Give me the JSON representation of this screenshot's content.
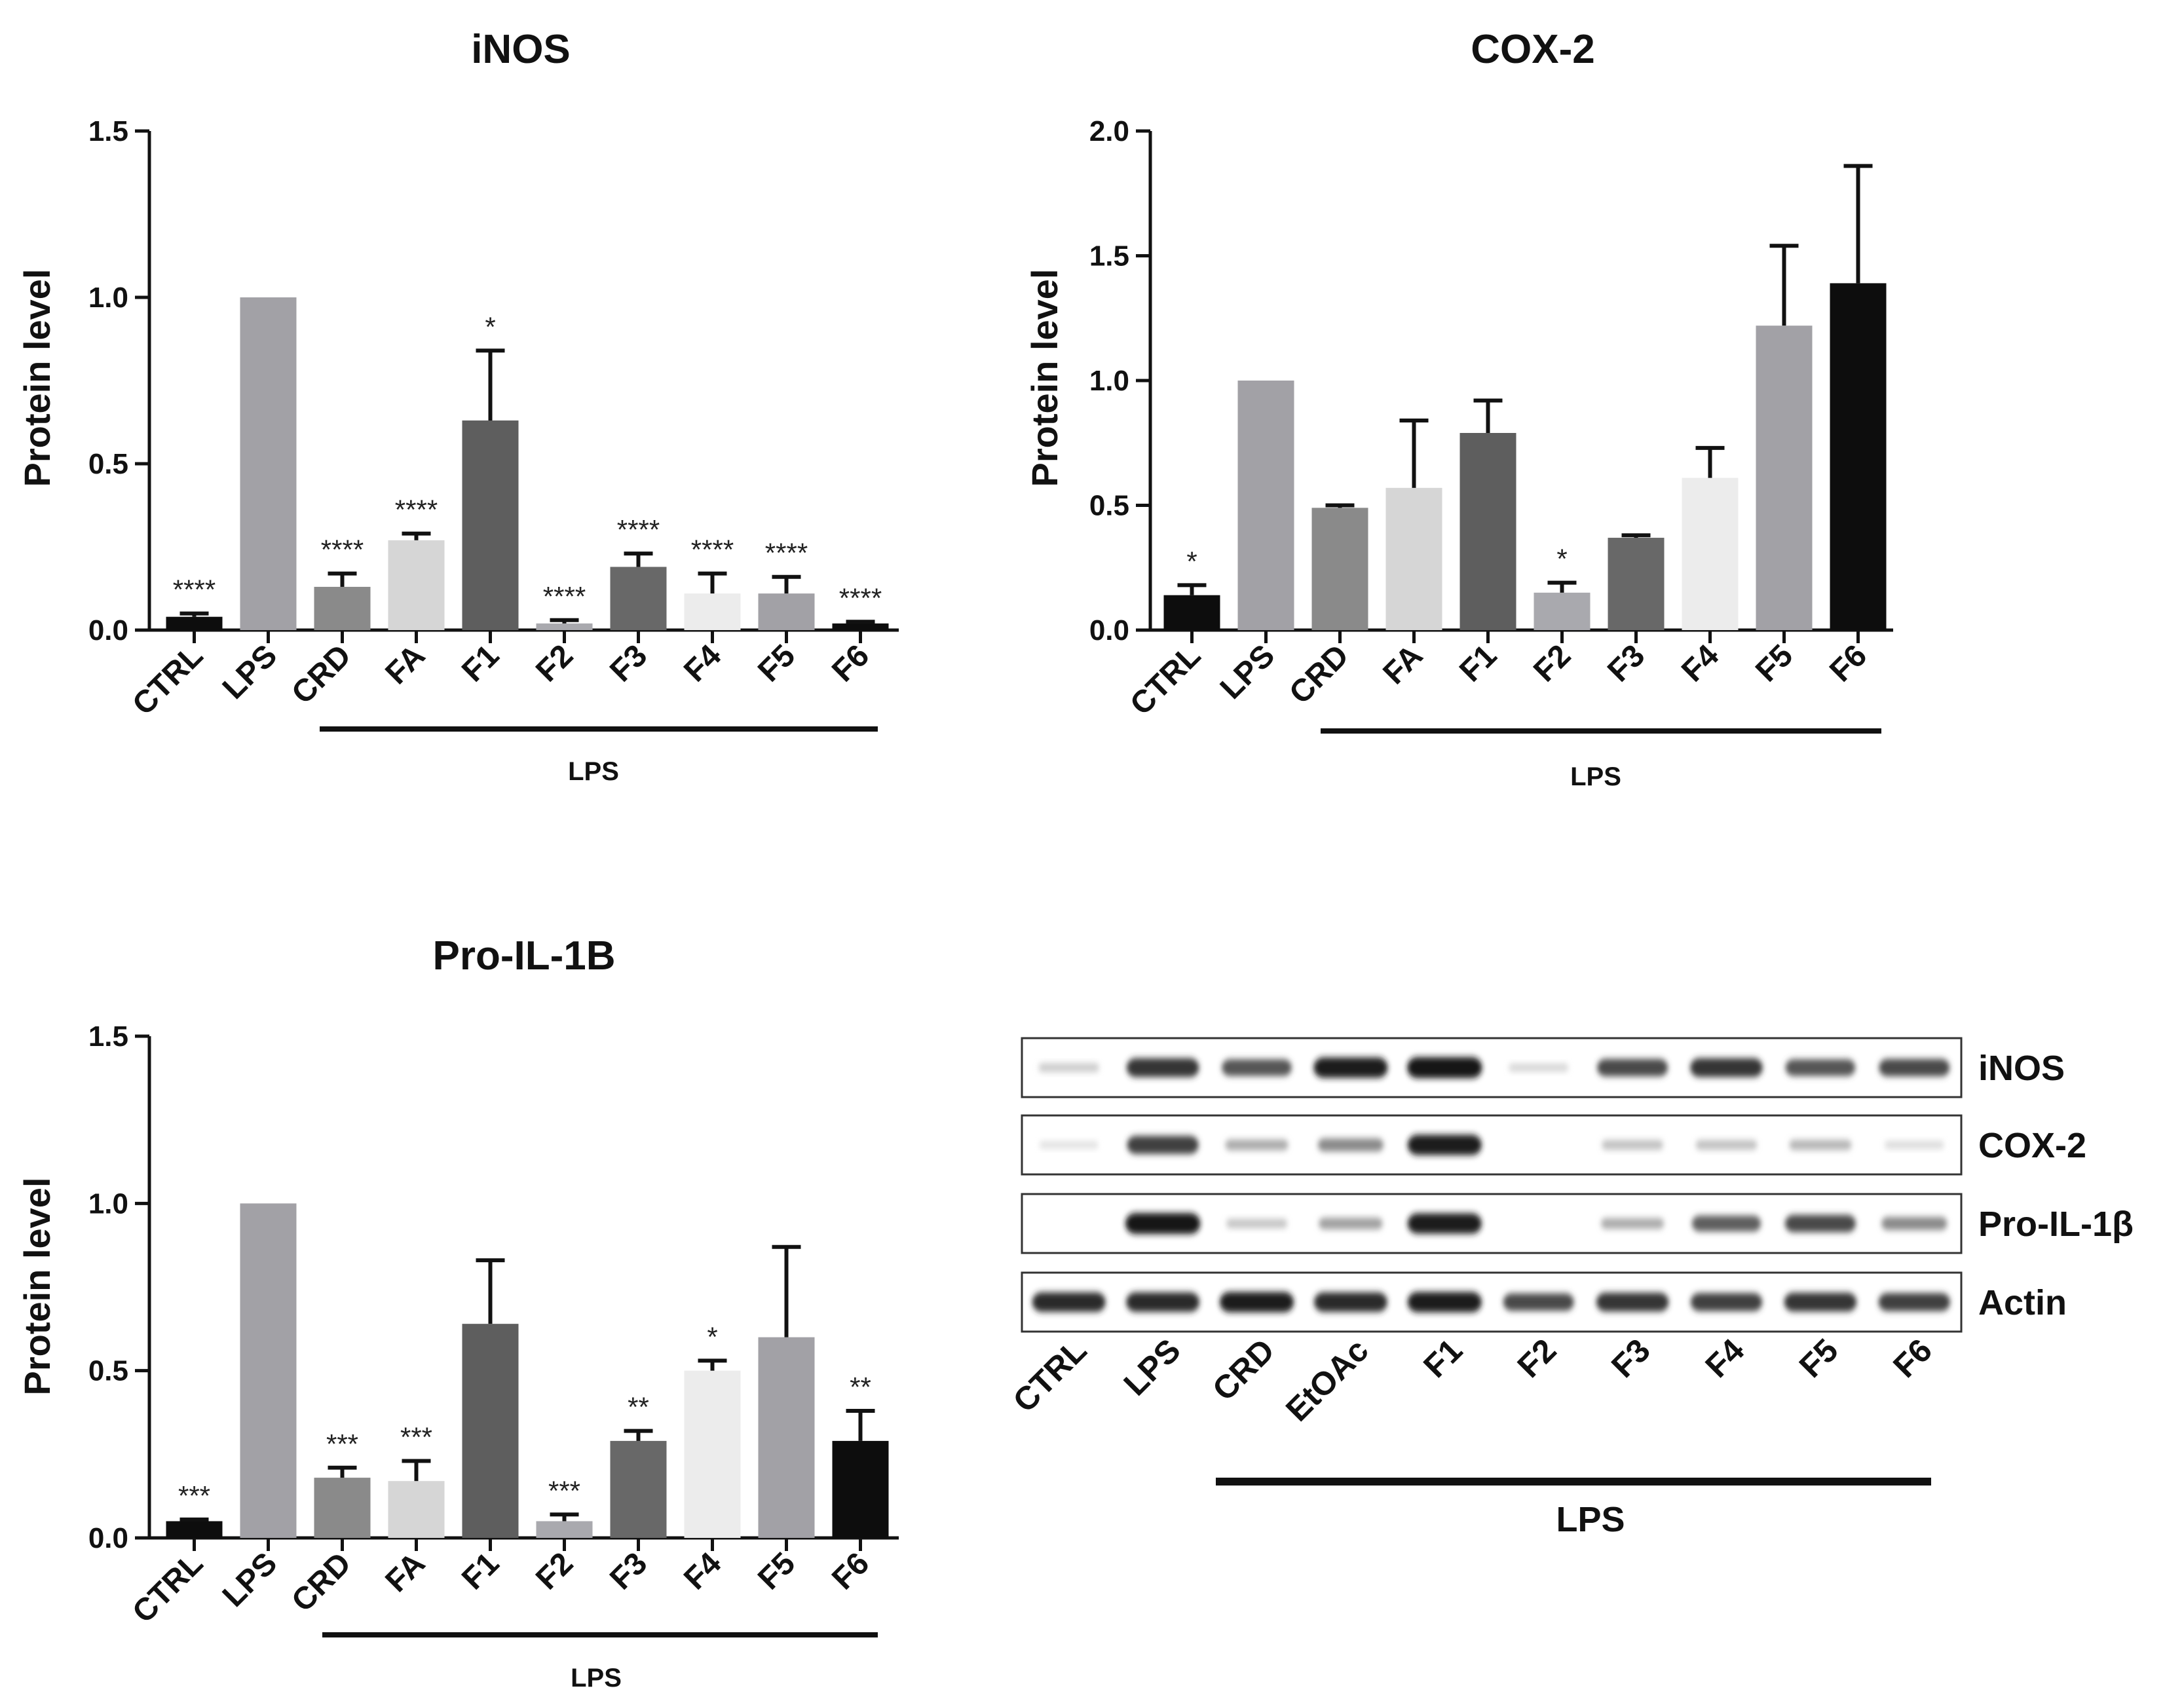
{
  "chart_data": [
    {
      "type": "bar",
      "title": "iNOS",
      "ylabel": "Protein level",
      "xlabel": "",
      "ylim": [
        0,
        1.5
      ],
      "yticks": [
        "0.0",
        "0.5",
        "1.0",
        "1.5"
      ],
      "yticks_values": [
        0,
        0.5,
        1.0,
        1.5
      ],
      "categories": [
        "CTRL",
        "LPS",
        "CRD",
        "FA",
        "F1",
        "F2",
        "F3",
        "F4",
        "F5",
        "F6"
      ],
      "values": [
        0.04,
        1.0,
        0.13,
        0.27,
        0.63,
        0.02,
        0.19,
        0.11,
        0.11,
        0.02
      ],
      "errors": [
        0.01,
        0,
        0.04,
        0.02,
        0.21,
        0.01,
        0.04,
        0.06,
        0.05,
        0.005
      ],
      "significance": [
        "****",
        "",
        "****",
        "****",
        "*",
        "****",
        "****",
        "****",
        "****",
        "****"
      ],
      "colors": [
        "#0d0d0d",
        "#a2a1a6",
        "#8a8a8a",
        "#d6d6d6",
        "#5e5e5e",
        "#a9a9ae",
        "#686868",
        "#ececec",
        "#a2a1a6",
        "#0d0d0d"
      ],
      "group_label": "LPS"
    },
    {
      "type": "bar",
      "title": "COX-2",
      "ylabel": "Protein level",
      "xlabel": "",
      "ylim": [
        0,
        2.0
      ],
      "yticks": [
        "0.0",
        "0.5",
        "1.0",
        "1.5",
        "2.0"
      ],
      "yticks_values": [
        0,
        0.5,
        1.0,
        1.5,
        2.0
      ],
      "categories": [
        "CTRL",
        "LPS",
        "CRD",
        "FA",
        "F1",
        "F2",
        "F3",
        "F4",
        "F5",
        "F6"
      ],
      "values": [
        0.14,
        1.0,
        0.49,
        0.57,
        0.79,
        0.15,
        0.37,
        0.61,
        1.22,
        1.39
      ],
      "errors": [
        0.04,
        0,
        0.01,
        0.27,
        0.13,
        0.04,
        0.01,
        0.12,
        0.32,
        0.47
      ],
      "significance": [
        "*",
        "",
        "",
        "",
        "",
        "*",
        "",
        "",
        "",
        ""
      ],
      "colors": [
        "#0d0d0d",
        "#a2a1a6",
        "#8a8a8a",
        "#d6d6d6",
        "#5e5e5e",
        "#a9a9ae",
        "#686868",
        "#ececec",
        "#a2a1a6",
        "#0d0d0d"
      ],
      "group_label": "LPS"
    },
    {
      "type": "bar",
      "title": "Pro-IL-1B",
      "ylabel": "Protein level",
      "xlabel": "",
      "ylim": [
        0,
        1.5
      ],
      "yticks": [
        "0.0",
        "0.5",
        "1.0",
        "1.5"
      ],
      "yticks_values": [
        0,
        0.5,
        1.0,
        1.5
      ],
      "categories": [
        "CTRL",
        "LPS",
        "CRD",
        "FA",
        "F1",
        "F2",
        "F3",
        "F4",
        "F5",
        "F6"
      ],
      "values": [
        0.05,
        1.0,
        0.18,
        0.17,
        0.64,
        0.05,
        0.29,
        0.5,
        0.6,
        0.29
      ],
      "errors": [
        0.005,
        0,
        0.03,
        0.06,
        0.19,
        0.02,
        0.03,
        0.03,
        0.27,
        0.09
      ],
      "significance": [
        "***",
        "",
        "***",
        "***",
        "",
        "***",
        "**",
        "*",
        "",
        "**"
      ],
      "colors": [
        "#0d0d0d",
        "#a2a1a6",
        "#8a8a8a",
        "#d6d6d6",
        "#5e5e5e",
        "#a9a9ae",
        "#686868",
        "#ececec",
        "#a2a1a6",
        "#0d0d0d"
      ],
      "group_label": "LPS"
    }
  ],
  "blot": {
    "rows": [
      "iNOS",
      "COX-2",
      "Pro-IL-1β",
      "Actin"
    ],
    "lanes": [
      "CTRL",
      "LPS",
      "CRD",
      "EtOAc",
      "F1",
      "F2",
      "F3",
      "F4",
      "F5",
      "F6"
    ],
    "group_label": "LPS",
    "intensity": [
      [
        0.15,
        0.85,
        0.7,
        0.95,
        1.0,
        0.1,
        0.75,
        0.85,
        0.7,
        0.75
      ],
      [
        0.05,
        0.8,
        0.3,
        0.45,
        0.95,
        0.03,
        0.2,
        0.2,
        0.25,
        0.08
      ],
      [
        0.03,
        1.0,
        0.18,
        0.35,
        0.95,
        0.03,
        0.3,
        0.65,
        0.75,
        0.45
      ],
      [
        0.9,
        0.9,
        0.95,
        0.9,
        0.95,
        0.75,
        0.85,
        0.8,
        0.85,
        0.8
      ]
    ]
  }
}
